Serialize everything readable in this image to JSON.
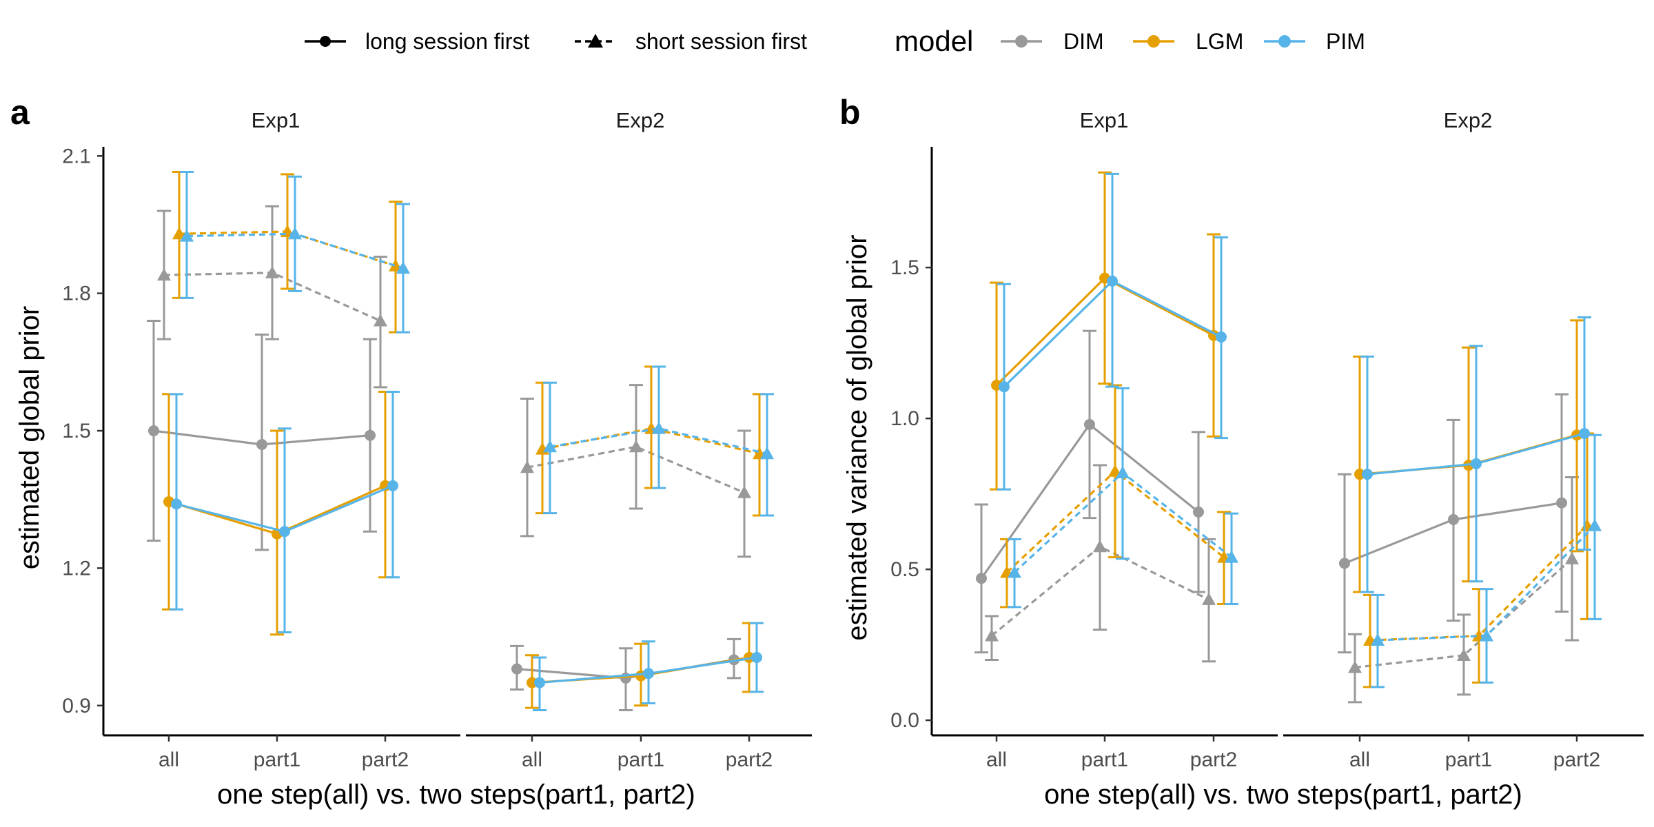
{
  "legend": {
    "linetype_items": [
      "long session first",
      "short session first"
    ],
    "model_title": "model",
    "model_items": [
      "DIM",
      "LGM",
      "PIM"
    ]
  },
  "colors": {
    "DIM": "#999999",
    "LGM": "#E69F00",
    "PIM": "#56B4E9"
  },
  "chart_data": [
    {
      "type": "line",
      "panel_label": "a",
      "xlabel": "one step(all) vs. two steps(part1, part2)",
      "ylabel": "estimated global prior",
      "ylim": [
        0.835,
        2.12
      ],
      "yticks": [
        0.9,
        1.2,
        1.5,
        1.8,
        2.1
      ],
      "tick_labels": [
        "0.9",
        "1.2",
        "1.5",
        "1.8",
        "2.1"
      ],
      "grid": false,
      "error_bars": true,
      "legend_position": "top",
      "categories": [
        "all",
        "part1",
        "part2"
      ],
      "facets": [
        {
          "title": "Exp1",
          "series": [
            {
              "model": "DIM",
              "session": "long session first",
              "values": [
                1.5,
                1.47,
                1.49
              ],
              "lower": [
                1.26,
                1.24,
                1.28
              ],
              "upper": [
                1.74,
                1.71,
                1.7
              ]
            },
            {
              "model": "LGM",
              "session": "long session first",
              "values": [
                1.345,
                1.275,
                1.38
              ],
              "lower": [
                1.11,
                1.055,
                1.18
              ],
              "upper": [
                1.58,
                1.5,
                1.585
              ]
            },
            {
              "model": "PIM",
              "session": "long session first",
              "values": [
                1.34,
                1.28,
                1.38
              ],
              "lower": [
                1.11,
                1.06,
                1.18
              ],
              "upper": [
                1.58,
                1.505,
                1.585
              ]
            },
            {
              "model": "DIM",
              "session": "short session first",
              "values": [
                1.84,
                1.845,
                1.74
              ],
              "lower": [
                1.7,
                1.7,
                1.595
              ],
              "upper": [
                1.98,
                1.99,
                1.88
              ]
            },
            {
              "model": "LGM",
              "session": "short session first",
              "values": [
                1.93,
                1.935,
                1.86
              ],
              "lower": [
                1.79,
                1.81,
                1.715
              ],
              "upper": [
                2.065,
                2.06,
                2.0
              ]
            },
            {
              "model": "PIM",
              "session": "short session first",
              "values": [
                1.925,
                1.93,
                1.855
              ],
              "lower": [
                1.79,
                1.805,
                1.715
              ],
              "upper": [
                2.065,
                2.055,
                1.995
              ]
            }
          ]
        },
        {
          "title": "Exp2",
          "series": [
            {
              "model": "DIM",
              "session": "long session first",
              "values": [
                0.98,
                0.96,
                1.0
              ],
              "lower": [
                0.935,
                0.89,
                0.96
              ],
              "upper": [
                1.03,
                1.025,
                1.045
              ]
            },
            {
              "model": "LGM",
              "session": "long session first",
              "values": [
                0.95,
                0.965,
                1.005
              ],
              "lower": [
                0.895,
                0.9,
                0.93
              ],
              "upper": [
                1.01,
                1.035,
                1.08
              ]
            },
            {
              "model": "PIM",
              "session": "long session first",
              "values": [
                0.95,
                0.97,
                1.005
              ],
              "lower": [
                0.89,
                0.905,
                0.93
              ],
              "upper": [
                1.005,
                1.04,
                1.08
              ]
            },
            {
              "model": "DIM",
              "session": "short session first",
              "values": [
                1.42,
                1.465,
                1.365
              ],
              "lower": [
                1.27,
                1.33,
                1.225
              ],
              "upper": [
                1.57,
                1.6,
                1.5
              ]
            },
            {
              "model": "LGM",
              "session": "short session first",
              "values": [
                1.46,
                1.505,
                1.45
              ],
              "lower": [
                1.32,
                1.375,
                1.315
              ],
              "upper": [
                1.605,
                1.64,
                1.58
              ]
            },
            {
              "model": "PIM",
              "session": "short session first",
              "values": [
                1.465,
                1.505,
                1.45
              ],
              "lower": [
                1.32,
                1.375,
                1.315
              ],
              "upper": [
                1.605,
                1.64,
                1.58
              ]
            }
          ]
        }
      ]
    },
    {
      "type": "line",
      "panel_label": "b",
      "xlabel": "one step(all) vs. two steps(part1, part2)",
      "ylabel": "estimated variance of global prior",
      "ylim": [
        -0.05,
        1.9
      ],
      "yticks": [
        0.0,
        0.5,
        1.0,
        1.5
      ],
      "tick_labels": [
        "0.0",
        "0.5",
        "1.0",
        "1.5"
      ],
      "grid": false,
      "error_bars": true,
      "legend_position": "top",
      "categories": [
        "all",
        "part1",
        "part2"
      ],
      "facets": [
        {
          "title": "Exp1",
          "series": [
            {
              "model": "DIM",
              "session": "long session first",
              "values": [
                0.47,
                0.98,
                0.69
              ],
              "lower": [
                0.225,
                0.67,
                0.425
              ],
              "upper": [
                0.715,
                1.29,
                0.955
              ]
            },
            {
              "model": "LGM",
              "session": "long session first",
              "values": [
                1.11,
                1.465,
                1.275
              ],
              "lower": [
                0.765,
                1.115,
                0.94
              ],
              "upper": [
                1.45,
                1.815,
                1.61
              ]
            },
            {
              "model": "PIM",
              "session": "long session first",
              "values": [
                1.105,
                1.455,
                1.27
              ],
              "lower": [
                0.765,
                1.105,
                0.935
              ],
              "upper": [
                1.445,
                1.81,
                1.6
              ]
            },
            {
              "model": "DIM",
              "session": "short session first",
              "values": [
                0.28,
                0.575,
                0.4
              ],
              "lower": [
                0.2,
                0.3,
                0.195
              ],
              "upper": [
                0.345,
                0.845,
                0.6
              ]
            },
            {
              "model": "LGM",
              "session": "short session first",
              "values": [
                0.49,
                0.825,
                0.54
              ],
              "lower": [
                0.375,
                0.54,
                0.385
              ],
              "upper": [
                0.6,
                1.11,
                0.69
              ]
            },
            {
              "model": "PIM",
              "session": "short session first",
              "values": [
                0.49,
                0.82,
                0.54
              ],
              "lower": [
                0.375,
                0.535,
                0.385
              ],
              "upper": [
                0.6,
                1.1,
                0.685
              ]
            }
          ]
        },
        {
          "title": "Exp2",
          "series": [
            {
              "model": "DIM",
              "session": "long session first",
              "values": [
                0.52,
                0.665,
                0.72
              ],
              "lower": [
                0.225,
                0.33,
                0.36
              ],
              "upper": [
                0.815,
                0.995,
                1.08
              ]
            },
            {
              "model": "LGM",
              "session": "long session first",
              "values": [
                0.815,
                0.845,
                0.945
              ],
              "lower": [
                0.425,
                0.46,
                0.56
              ],
              "upper": [
                1.205,
                1.235,
                1.325
              ]
            },
            {
              "model": "PIM",
              "session": "long session first",
              "values": [
                0.815,
                0.85,
                0.95
              ],
              "lower": [
                0.425,
                0.46,
                0.565
              ],
              "upper": [
                1.205,
                1.24,
                1.335
              ]
            },
            {
              "model": "DIM",
              "session": "short session first",
              "values": [
                0.175,
                0.215,
                0.535
              ],
              "lower": [
                0.06,
                0.085,
                0.265
              ],
              "upper": [
                0.285,
                0.35,
                0.805
              ]
            },
            {
              "model": "LGM",
              "session": "short session first",
              "values": [
                0.265,
                0.28,
                0.645
              ],
              "lower": [
                0.11,
                0.125,
                0.335
              ],
              "upper": [
                0.415,
                0.435,
                0.95
              ]
            },
            {
              "model": "PIM",
              "session": "short session first",
              "values": [
                0.265,
                0.28,
                0.645
              ],
              "lower": [
                0.11,
                0.125,
                0.335
              ],
              "upper": [
                0.415,
                0.435,
                0.945
              ]
            }
          ]
        }
      ]
    }
  ]
}
